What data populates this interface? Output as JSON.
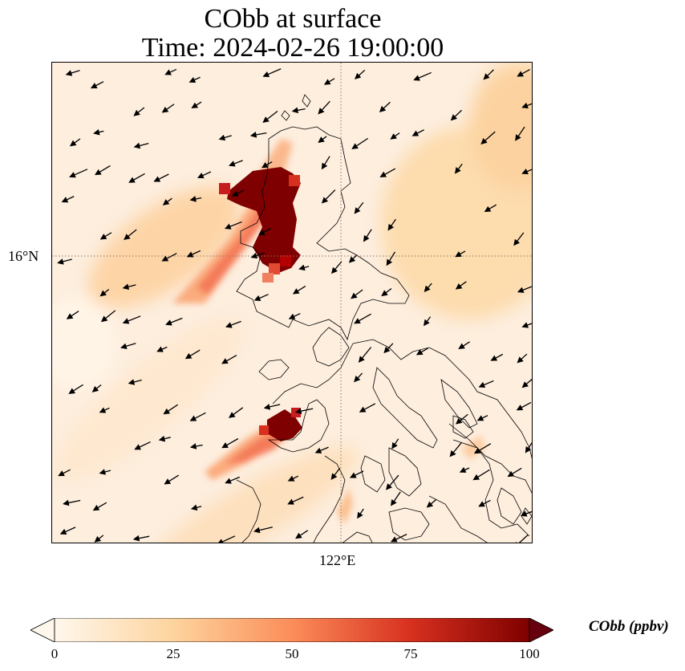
{
  "title": {
    "line1": "CObb at surface",
    "line2": "Time: 2024-02-26 19:00:00"
  },
  "axes": {
    "lat_label": "16°N",
    "lon_label": "122°E"
  },
  "colorbar": {
    "label": "CObb (ppbv)",
    "ticks": [
      "0",
      "25",
      "50",
      "75",
      "100"
    ],
    "colormap": "OrRd",
    "min": 0,
    "max": 100,
    "colors": [
      "#fff7ec",
      "#fdd49e",
      "#fc8d59",
      "#d7301f",
      "#7f0000"
    ]
  },
  "map": {
    "ocean_color": "#fdeede",
    "land_outline_color": "#000000",
    "gridline_color": "#8b7765",
    "wind_arrow_color": "#000000"
  }
}
